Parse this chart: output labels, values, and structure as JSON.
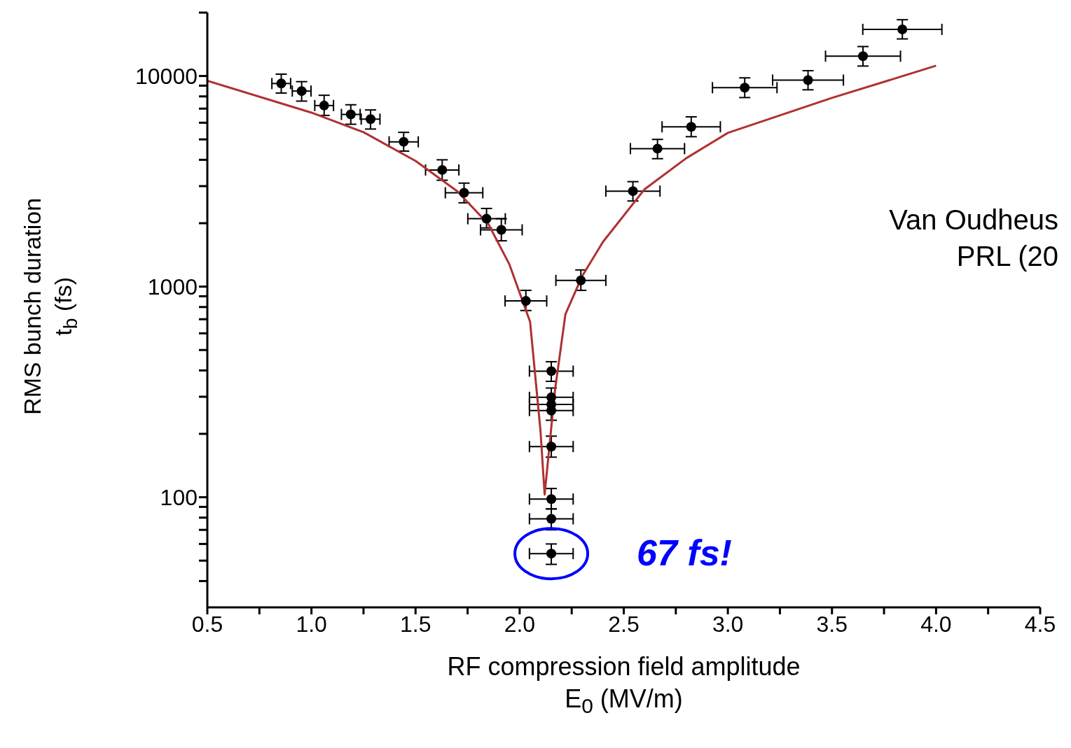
{
  "chart_data": {
    "type": "scatter",
    "xlabel": "RF compression field amplitude\nE$_{0}$ (MV/m)",
    "ylabel": "RMS bunch duration\nt$_{b}$ (fs)",
    "log": "y",
    "xlim": [
      0.5,
      4.5
    ],
    "xticks": [
      0.5,
      {
        "value": 0.75,
        "label": null
      },
      {
        "value": 1.0,
        "label": "1.0"
      },
      {
        "value": 1.25,
        "label": null
      },
      1.5,
      {
        "value": 1.75,
        "label": null
      },
      {
        "value": 2.0,
        "label": "2.0"
      },
      {
        "value": 2.25,
        "label": null
      },
      2.5,
      {
        "value": 2.75,
        "label": null
      },
      {
        "value": 3.0,
        "label": "3.0"
      },
      {
        "value": 3.25,
        "label": null
      },
      3.5,
      {
        "value": 3.75,
        "label": null
      },
      {
        "value": 4.0,
        "label": "4.0"
      },
      {
        "value": 4.25,
        "label": null
      },
      4.5
    ],
    "ylim": [
      30,
      20000
    ],
    "yticks": [
      {
        "value": 40,
        "label": null
      },
      {
        "value": 50,
        "label": null
      },
      {
        "value": 60,
        "label": null
      },
      {
        "value": 70,
        "label": null
      },
      {
        "value": 80,
        "label": null
      },
      {
        "value": 90,
        "label": null
      },
      100,
      {
        "value": 200,
        "label": null
      },
      {
        "value": 300,
        "label": null
      },
      {
        "value": 400,
        "label": null
      },
      {
        "value": 500,
        "label": null
      },
      {
        "value": 600,
        "label": null
      },
      {
        "value": 700,
        "label": null
      },
      {
        "value": 800,
        "label": null
      },
      {
        "value": 900,
        "label": null
      },
      1000,
      {
        "value": 2000,
        "label": null
      },
      {
        "value": 3000,
        "label": null
      },
      {
        "value": 4000,
        "label": null
      },
      {
        "value": 5000,
        "label": null
      },
      {
        "value": 6000,
        "label": null
      },
      {
        "value": 7000,
        "label": null
      },
      {
        "value": 8000,
        "label": null
      },
      {
        "value": 9000,
        "label": null
      },
      10000,
      {
        "value": 20000,
        "label": null
      }
    ],
    "series": [
      {
        "marker": "circle",
        "color": "#000000",
        "x": [
          0.855,
          0.953,
          1.061,
          1.189,
          1.284,
          1.443,
          1.628,
          1.733,
          1.841,
          1.912,
          2.03,
          2.294,
          2.152,
          2.152,
          2.152,
          2.152,
          2.152,
          2.152,
          2.152,
          2.152,
          2.544,
          2.662,
          2.824,
          3.081,
          3.385,
          3.649,
          3.838
        ],
        "values": [
          9210,
          8480,
          7240,
          6570,
          6240,
          4870,
          3580,
          2790,
          2100,
          1860,
          855,
          1070,
          397,
          298,
          276,
          258,
          174,
          98,
          79,
          54,
          2840,
          4520,
          5740,
          8800,
          9560,
          12420,
          16650
        ],
        "errors": [
          [
            8300,
            10200
          ],
          [
            7600,
            9400
          ],
          [
            6500,
            8100
          ],
          [
            5900,
            7300
          ],
          [
            5600,
            6900
          ],
          [
            4400,
            5400
          ],
          [
            3200,
            4000
          ],
          [
            2500,
            3100
          ],
          [
            1900,
            2350
          ],
          [
            1650,
            2100
          ],
          [
            770,
            960
          ],
          [
            960,
            1200
          ],
          [
            355,
            440
          ],
          [
            298,
            330
          ],
          null,
          [
            232,
            258
          ],
          [
            155,
            195
          ],
          [
            88,
            110
          ],
          [
            70,
            88
          ],
          [
            48,
            60
          ],
          [
            2550,
            3150
          ],
          [
            4050,
            5000
          ],
          [
            5150,
            6400
          ],
          [
            7900,
            9800
          ],
          [
            8600,
            10600
          ],
          [
            11150,
            13800
          ],
          [
            15000,
            18500
          ]
        ],
        "xerrors": [
          0.045,
          0.045,
          0.045,
          0.045,
          0.045,
          0.07,
          0.08,
          0.09,
          0.09,
          0.1,
          0.1,
          0.12,
          0.105,
          0.105,
          0.105,
          0.105,
          0.105,
          0.105,
          0.105,
          0.105,
          0.13,
          0.13,
          0.14,
          0.155,
          0.17,
          0.18,
          0.19
        ]
      },
      {
        "type": "line",
        "color": "#b03030",
        "x": [
          0.5,
          1.0,
          1.25,
          1.5,
          1.7,
          1.85,
          1.95,
          2.05,
          2.1,
          2.12,
          2.17,
          2.22,
          2.3,
          2.4,
          2.6,
          2.8,
          3.0,
          3.5,
          4.0
        ],
        "values": [
          9490,
          6700,
          5410,
          3950,
          2840,
          1980,
          1280,
          682,
          207,
          103,
          324,
          741,
          1120,
          1630,
          2900,
          4070,
          5370,
          7870,
          11190
        ]
      }
    ],
    "annotations": [
      {
        "text": "67 fs!",
        "x": 2.152,
        "y": 54
      },
      "Van Oudheus",
      "PRL (20"
    ]
  }
}
